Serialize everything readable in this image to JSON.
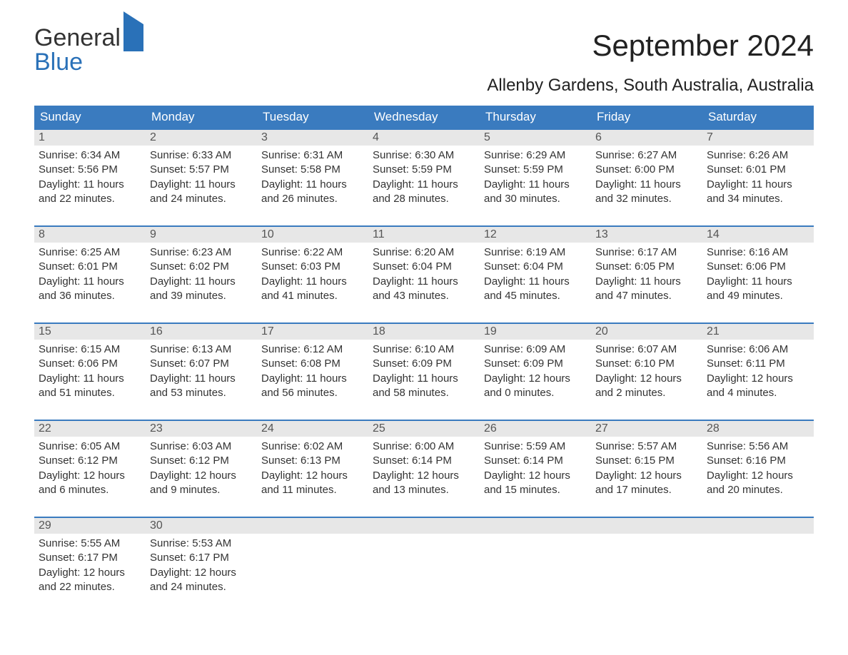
{
  "brand": {
    "word1": "General",
    "word2": "Blue"
  },
  "title": "September 2024",
  "location": "Allenby Gardens, South Australia, Australia",
  "colors": {
    "header_bg": "#3a7bbf",
    "header_text": "#ffffff",
    "daynum_bg": "#e7e7e7",
    "daynum_text": "#555555",
    "body_text": "#333333",
    "week_border": "#3a7bbf",
    "brand_blue": "#2a71b8",
    "background": "#ffffff"
  },
  "typography": {
    "title_fontsize": 42,
    "location_fontsize": 24,
    "dow_fontsize": 17,
    "daynum_fontsize": 16,
    "body_fontsize": 15
  },
  "layout": {
    "columns": 7,
    "rows": 5
  },
  "dow": [
    "Sunday",
    "Monday",
    "Tuesday",
    "Wednesday",
    "Thursday",
    "Friday",
    "Saturday"
  ],
  "weeks": [
    [
      {
        "n": "1",
        "sr": "Sunrise: 6:34 AM",
        "ss": "Sunset: 5:56 PM",
        "d1": "Daylight: 11 hours",
        "d2": "and 22 minutes."
      },
      {
        "n": "2",
        "sr": "Sunrise: 6:33 AM",
        "ss": "Sunset: 5:57 PM",
        "d1": "Daylight: 11 hours",
        "d2": "and 24 minutes."
      },
      {
        "n": "3",
        "sr": "Sunrise: 6:31 AM",
        "ss": "Sunset: 5:58 PM",
        "d1": "Daylight: 11 hours",
        "d2": "and 26 minutes."
      },
      {
        "n": "4",
        "sr": "Sunrise: 6:30 AM",
        "ss": "Sunset: 5:59 PM",
        "d1": "Daylight: 11 hours",
        "d2": "and 28 minutes."
      },
      {
        "n": "5",
        "sr": "Sunrise: 6:29 AM",
        "ss": "Sunset: 5:59 PM",
        "d1": "Daylight: 11 hours",
        "d2": "and 30 minutes."
      },
      {
        "n": "6",
        "sr": "Sunrise: 6:27 AM",
        "ss": "Sunset: 6:00 PM",
        "d1": "Daylight: 11 hours",
        "d2": "and 32 minutes."
      },
      {
        "n": "7",
        "sr": "Sunrise: 6:26 AM",
        "ss": "Sunset: 6:01 PM",
        "d1": "Daylight: 11 hours",
        "d2": "and 34 minutes."
      }
    ],
    [
      {
        "n": "8",
        "sr": "Sunrise: 6:25 AM",
        "ss": "Sunset: 6:01 PM",
        "d1": "Daylight: 11 hours",
        "d2": "and 36 minutes."
      },
      {
        "n": "9",
        "sr": "Sunrise: 6:23 AM",
        "ss": "Sunset: 6:02 PM",
        "d1": "Daylight: 11 hours",
        "d2": "and 39 minutes."
      },
      {
        "n": "10",
        "sr": "Sunrise: 6:22 AM",
        "ss": "Sunset: 6:03 PM",
        "d1": "Daylight: 11 hours",
        "d2": "and 41 minutes."
      },
      {
        "n": "11",
        "sr": "Sunrise: 6:20 AM",
        "ss": "Sunset: 6:04 PM",
        "d1": "Daylight: 11 hours",
        "d2": "and 43 minutes."
      },
      {
        "n": "12",
        "sr": "Sunrise: 6:19 AM",
        "ss": "Sunset: 6:04 PM",
        "d1": "Daylight: 11 hours",
        "d2": "and 45 minutes."
      },
      {
        "n": "13",
        "sr": "Sunrise: 6:17 AM",
        "ss": "Sunset: 6:05 PM",
        "d1": "Daylight: 11 hours",
        "d2": "and 47 minutes."
      },
      {
        "n": "14",
        "sr": "Sunrise: 6:16 AM",
        "ss": "Sunset: 6:06 PM",
        "d1": "Daylight: 11 hours",
        "d2": "and 49 minutes."
      }
    ],
    [
      {
        "n": "15",
        "sr": "Sunrise: 6:15 AM",
        "ss": "Sunset: 6:06 PM",
        "d1": "Daylight: 11 hours",
        "d2": "and 51 minutes."
      },
      {
        "n": "16",
        "sr": "Sunrise: 6:13 AM",
        "ss": "Sunset: 6:07 PM",
        "d1": "Daylight: 11 hours",
        "d2": "and 53 minutes."
      },
      {
        "n": "17",
        "sr": "Sunrise: 6:12 AM",
        "ss": "Sunset: 6:08 PM",
        "d1": "Daylight: 11 hours",
        "d2": "and 56 minutes."
      },
      {
        "n": "18",
        "sr": "Sunrise: 6:10 AM",
        "ss": "Sunset: 6:09 PM",
        "d1": "Daylight: 11 hours",
        "d2": "and 58 minutes."
      },
      {
        "n": "19",
        "sr": "Sunrise: 6:09 AM",
        "ss": "Sunset: 6:09 PM",
        "d1": "Daylight: 12 hours",
        "d2": "and 0 minutes."
      },
      {
        "n": "20",
        "sr": "Sunrise: 6:07 AM",
        "ss": "Sunset: 6:10 PM",
        "d1": "Daylight: 12 hours",
        "d2": "and 2 minutes."
      },
      {
        "n": "21",
        "sr": "Sunrise: 6:06 AM",
        "ss": "Sunset: 6:11 PM",
        "d1": "Daylight: 12 hours",
        "d2": "and 4 minutes."
      }
    ],
    [
      {
        "n": "22",
        "sr": "Sunrise: 6:05 AM",
        "ss": "Sunset: 6:12 PM",
        "d1": "Daylight: 12 hours",
        "d2": "and 6 minutes."
      },
      {
        "n": "23",
        "sr": "Sunrise: 6:03 AM",
        "ss": "Sunset: 6:12 PM",
        "d1": "Daylight: 12 hours",
        "d2": "and 9 minutes."
      },
      {
        "n": "24",
        "sr": "Sunrise: 6:02 AM",
        "ss": "Sunset: 6:13 PM",
        "d1": "Daylight: 12 hours",
        "d2": "and 11 minutes."
      },
      {
        "n": "25",
        "sr": "Sunrise: 6:00 AM",
        "ss": "Sunset: 6:14 PM",
        "d1": "Daylight: 12 hours",
        "d2": "and 13 minutes."
      },
      {
        "n": "26",
        "sr": "Sunrise: 5:59 AM",
        "ss": "Sunset: 6:14 PM",
        "d1": "Daylight: 12 hours",
        "d2": "and 15 minutes."
      },
      {
        "n": "27",
        "sr": "Sunrise: 5:57 AM",
        "ss": "Sunset: 6:15 PM",
        "d1": "Daylight: 12 hours",
        "d2": "and 17 minutes."
      },
      {
        "n": "28",
        "sr": "Sunrise: 5:56 AM",
        "ss": "Sunset: 6:16 PM",
        "d1": "Daylight: 12 hours",
        "d2": "and 20 minutes."
      }
    ],
    [
      {
        "n": "29",
        "sr": "Sunrise: 5:55 AM",
        "ss": "Sunset: 6:17 PM",
        "d1": "Daylight: 12 hours",
        "d2": "and 22 minutes."
      },
      {
        "n": "30",
        "sr": "Sunrise: 5:53 AM",
        "ss": "Sunset: 6:17 PM",
        "d1": "Daylight: 12 hours",
        "d2": "and 24 minutes."
      },
      {
        "n": "",
        "empty": true
      },
      {
        "n": "",
        "empty": true
      },
      {
        "n": "",
        "empty": true
      },
      {
        "n": "",
        "empty": true
      },
      {
        "n": "",
        "empty": true
      }
    ]
  ]
}
